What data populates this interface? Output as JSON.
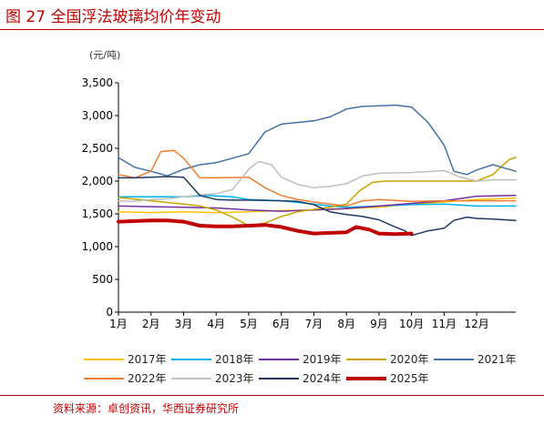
{
  "figure": {
    "title": "图 27 全国浮法玻璃均价年变动",
    "unit": "(元/吨)",
    "source": "资料来源：卓创资讯，华西证券研究所"
  },
  "chart_data": {
    "type": "line",
    "title": "图 27 全国浮法玻璃均价年变动",
    "ylabel": "(元/吨)",
    "xlabel": "",
    "ylim": [
      0,
      3500
    ],
    "yticks": [
      0,
      500,
      1000,
      1500,
      2000,
      2500,
      3000,
      3500
    ],
    "ytick_labels": [
      "0",
      "500",
      "1,000",
      "1,500",
      "2,000",
      "2,500",
      "3,000",
      "3,500"
    ],
    "xlim": [
      1,
      13.2
    ],
    "xticks": [
      1,
      2,
      3,
      4,
      5,
      6,
      7,
      8,
      9,
      10,
      11,
      12
    ],
    "xtick_labels": [
      "1月",
      "2月",
      "3月",
      "4月",
      "5月",
      "6月",
      "7月",
      "8月",
      "9月",
      "10月",
      "11月",
      "12月"
    ],
    "grid": false,
    "legend": "bottom",
    "series": [
      {
        "name": "2017年",
        "color": "#ffc000",
        "width": 1.5,
        "x": [
          1,
          2,
          3,
          4,
          5,
          6,
          7,
          8,
          9,
          10,
          11,
          12,
          13.2
        ],
        "y": [
          1530,
          1520,
          1530,
          1520,
          1530,
          1550,
          1560,
          1580,
          1600,
          1650,
          1680,
          1720,
          1740
        ]
      },
      {
        "name": "2018年",
        "color": "#00b0f0",
        "width": 1.5,
        "x": [
          1,
          2,
          3,
          3.7,
          4.5,
          5,
          6,
          7,
          7.5,
          8,
          9,
          10,
          11,
          12,
          13.2
        ],
        "y": [
          1760,
          1760,
          1760,
          1780,
          1760,
          1720,
          1700,
          1650,
          1620,
          1600,
          1620,
          1640,
          1650,
          1620,
          1620
        ]
      },
      {
        "name": "2019年",
        "color": "#7030a0",
        "width": 1.5,
        "x": [
          1,
          2,
          3,
          4,
          5,
          6,
          7,
          8,
          9,
          10,
          11,
          12,
          13.2
        ],
        "y": [
          1620,
          1610,
          1600,
          1590,
          1560,
          1540,
          1560,
          1580,
          1620,
          1660,
          1700,
          1770,
          1780
        ]
      },
      {
        "name": "2020年",
        "color": "#c8a200",
        "width": 1.5,
        "x": [
          1,
          2,
          3,
          3.5,
          4,
          4.5,
          5,
          5.5,
          6,
          6.5,
          7,
          7.5,
          8,
          8.4,
          8.8,
          9.2,
          10,
          11,
          12,
          12.5,
          13,
          13.2
        ],
        "y": [
          1750,
          1700,
          1650,
          1620,
          1560,
          1450,
          1320,
          1360,
          1460,
          1530,
          1570,
          1600,
          1650,
          1850,
          1980,
          2000,
          2000,
          2000,
          2000,
          2100,
          2330,
          2360
        ]
      },
      {
        "name": "2021年",
        "color": "#4472a4",
        "width": 1.5,
        "x": [
          1,
          1.5,
          2,
          2.5,
          3,
          3.5,
          4,
          5,
          5.5,
          6,
          7,
          7.5,
          8,
          8.5,
          9,
          9.5,
          10,
          10.5,
          11,
          11.3,
          11.7,
          12,
          12.5,
          13.2
        ],
        "y": [
          2360,
          2210,
          2150,
          2080,
          2180,
          2250,
          2280,
          2420,
          2750,
          2870,
          2920,
          2980,
          3100,
          3140,
          3150,
          3160,
          3130,
          2900,
          2550,
          2150,
          2100,
          2170,
          2250,
          2150
        ]
      },
      {
        "name": "2022年",
        "color": "#ed7d31",
        "width": 1.5,
        "x": [
          1,
          1.5,
          2,
          2.3,
          2.7,
          3,
          3.5,
          4,
          5,
          5.5,
          6,
          6.5,
          7,
          7.5,
          8,
          8.5,
          9,
          10,
          11,
          12,
          13.2
        ],
        "y": [
          2100,
          2050,
          2150,
          2450,
          2470,
          2350,
          2050,
          2050,
          2060,
          1900,
          1780,
          1720,
          1680,
          1650,
          1620,
          1700,
          1720,
          1690,
          1700,
          1700,
          1700
        ]
      },
      {
        "name": "2023年",
        "color": "#bfbfbf",
        "width": 1.5,
        "x": [
          1,
          1.5,
          2,
          2.5,
          3,
          3.5,
          4,
          4.5,
          5,
          5.3,
          5.7,
          6,
          6.5,
          7,
          7.5,
          8,
          8.5,
          9,
          10,
          11,
          11.5,
          12,
          12.5,
          13.2
        ],
        "y": [
          1700,
          1690,
          1720,
          1730,
          1760,
          1790,
          1810,
          1870,
          2180,
          2300,
          2250,
          2060,
          1950,
          1900,
          1920,
          1960,
          2080,
          2120,
          2130,
          2160,
          2060,
          2000,
          2020,
          2020
        ]
      },
      {
        "name": "2024年",
        "color": "#1f3864",
        "width": 1.5,
        "x": [
          1,
          1.5,
          2,
          2.5,
          3,
          3.5,
          4,
          4.5,
          5,
          6,
          6.5,
          7,
          7.5,
          8,
          8.5,
          9,
          9.5,
          9.8,
          10,
          10.5,
          11,
          11.3,
          11.7,
          12,
          12.5,
          13.2
        ],
        "y": [
          2050,
          2050,
          2060,
          2070,
          2060,
          1780,
          1720,
          1710,
          1710,
          1700,
          1690,
          1640,
          1530,
          1490,
          1460,
          1410,
          1300,
          1240,
          1170,
          1240,
          1280,
          1400,
          1450,
          1430,
          1420,
          1400
        ]
      },
      {
        "name": "2025年",
        "color": "#c00000",
        "width": 4,
        "x": [
          1,
          1.5,
          2,
          2.5,
          3,
          3.5,
          4,
          4.5,
          5,
          5.5,
          6,
          6.5,
          7,
          7.5,
          8,
          8.3,
          8.7,
          9,
          9.5,
          10
        ],
        "y": [
          1380,
          1390,
          1400,
          1400,
          1380,
          1320,
          1310,
          1310,
          1320,
          1330,
          1300,
          1240,
          1200,
          1210,
          1220,
          1300,
          1260,
          1200,
          1190,
          1200
        ]
      }
    ]
  }
}
